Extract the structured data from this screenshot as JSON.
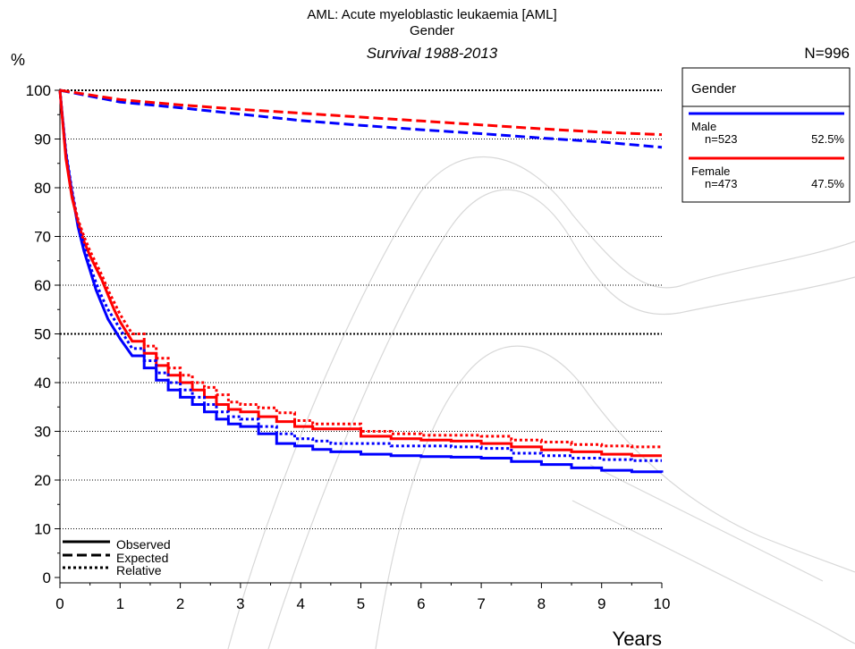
{
  "chart_data": {
    "type": "line",
    "title": "AML: Acute myeloblastic leukaemia [AML]",
    "subtitle": "Gender",
    "subtitle2": "Survival 1988-2013",
    "ylabel": "%",
    "xlabel": "Years",
    "n_total": "N=996",
    "xlim": [
      0,
      10
    ],
    "ylim": [
      0,
      100
    ],
    "xticks": [
      "0",
      "1",
      "2",
      "3",
      "4",
      "5",
      "6",
      "7",
      "8",
      "9",
      "10"
    ],
    "yticks": [
      "0",
      "10",
      "20",
      "30",
      "40",
      "50",
      "60",
      "70",
      "80",
      "90",
      "100"
    ],
    "legend": {
      "title": "Gender",
      "entries": [
        {
          "label": "Male",
          "n": "n=523",
          "pct": "52.5%",
          "color": "#0000ff"
        },
        {
          "label": "Female",
          "n": "n=473",
          "pct": "47.5%",
          "color": "#ff0000"
        }
      ]
    },
    "line_legend": [
      "Observed",
      "Expected",
      "Relative"
    ],
    "series": [
      {
        "group": "Male",
        "kind": "Observed",
        "color": "#0000ff",
        "x": [
          0,
          0.1,
          0.2,
          0.3,
          0.4,
          0.5,
          0.6,
          0.7,
          0.8,
          0.9,
          1.0,
          1.2,
          1.4,
          1.6,
          1.8,
          2.0,
          2.2,
          2.4,
          2.6,
          2.8,
          3.0,
          3.3,
          3.6,
          3.9,
          4.2,
          4.5,
          5.0,
          5.5,
          6.0,
          6.5,
          7.0,
          7.5,
          8.0,
          8.5,
          9.0,
          9.5,
          10.0
        ],
        "y": [
          100,
          87,
          79,
          72,
          67,
          63,
          59,
          56,
          53,
          51,
          49,
          45.5,
          43,
          40.5,
          38.5,
          37,
          35.5,
          34,
          32.5,
          31.5,
          31,
          29.5,
          27.5,
          27,
          26.3,
          25.8,
          25.3,
          25,
          24.8,
          24.7,
          24.5,
          23.8,
          23.2,
          22.5,
          22,
          21.7,
          21.5
        ]
      },
      {
        "group": "Female",
        "kind": "Observed",
        "color": "#ff0000",
        "x": [
          0,
          0.1,
          0.2,
          0.3,
          0.4,
          0.5,
          0.6,
          0.7,
          0.8,
          0.9,
          1.0,
          1.2,
          1.4,
          1.6,
          1.8,
          2.0,
          2.2,
          2.4,
          2.6,
          2.8,
          3.0,
          3.3,
          3.6,
          3.9,
          4.2,
          4.5,
          5.0,
          5.5,
          6.0,
          6.5,
          7.0,
          7.5,
          8.0,
          8.5,
          9.0,
          9.5,
          10.0
        ],
        "y": [
          100,
          86,
          78,
          73,
          69,
          66,
          63.5,
          61,
          58,
          55,
          52.5,
          48.5,
          46,
          43.5,
          41.5,
          40,
          38.5,
          37,
          35.5,
          34.5,
          34,
          33,
          32,
          31,
          30.5,
          30.5,
          29,
          28.5,
          28.2,
          28,
          27.5,
          26.8,
          26.2,
          25.8,
          25.3,
          25,
          25
        ]
      },
      {
        "group": "Male",
        "kind": "Expected",
        "color": "#0000ff",
        "x": [
          0,
          1,
          2,
          3,
          4,
          5,
          6,
          7,
          8,
          9,
          10
        ],
        "y": [
          100,
          97.6,
          96.4,
          95.1,
          93.8,
          92.8,
          91.9,
          91.1,
          90.2,
          89.4,
          88.3
        ]
      },
      {
        "group": "Female",
        "kind": "Expected",
        "color": "#ff0000",
        "x": [
          0,
          1,
          2,
          3,
          4,
          5,
          6,
          7,
          8,
          9,
          10
        ],
        "y": [
          100,
          98.1,
          97.0,
          96.1,
          95.3,
          94.5,
          93.7,
          92.9,
          92.1,
          91.4,
          90.9
        ]
      },
      {
        "group": "Male",
        "kind": "Relative",
        "color": "#0000ff",
        "x": [
          0,
          0.1,
          0.2,
          0.3,
          0.4,
          0.5,
          0.6,
          0.7,
          0.8,
          0.9,
          1.0,
          1.2,
          1.4,
          1.6,
          1.8,
          2.0,
          2.2,
          2.4,
          2.6,
          2.8,
          3.0,
          3.3,
          3.6,
          3.9,
          4.2,
          4.5,
          5.0,
          5.5,
          6.0,
          6.5,
          7.0,
          7.5,
          8.0,
          8.5,
          9.0,
          9.5,
          10.0
        ],
        "y": [
          100,
          87.5,
          79.5,
          73,
          68,
          64,
          60.5,
          57.5,
          55,
          53,
          51,
          47,
          44.5,
          42,
          40,
          38.5,
          37,
          35.5,
          34,
          33,
          32.5,
          31,
          29.5,
          28.5,
          28,
          27.5,
          27.5,
          27,
          27,
          26.8,
          26.5,
          25.5,
          25,
          24.5,
          24.2,
          24,
          24
        ]
      },
      {
        "group": "Female",
        "kind": "Relative",
        "color": "#ff0000",
        "x": [
          0,
          0.1,
          0.2,
          0.3,
          0.4,
          0.5,
          0.6,
          0.7,
          0.8,
          0.9,
          1.0,
          1.2,
          1.4,
          1.6,
          1.8,
          2.0,
          2.2,
          2.4,
          2.6,
          2.8,
          3.0,
          3.3,
          3.6,
          3.9,
          4.2,
          4.5,
          5.0,
          5.5,
          6.0,
          6.5,
          7.0,
          7.5,
          8.0,
          8.5,
          9.0,
          9.5,
          10.0
        ],
        "y": [
          100,
          86.5,
          78.5,
          73.5,
          70,
          67,
          64.5,
          62,
          59,
          56.5,
          54,
          50,
          47.5,
          45,
          43,
          41.5,
          40,
          39,
          37.5,
          36,
          35.5,
          34.8,
          33.8,
          32.2,
          31.5,
          31.5,
          30,
          29.5,
          29.2,
          29.2,
          29,
          28.2,
          27.8,
          27.3,
          27,
          26.8,
          26.8
        ]
      }
    ]
  }
}
